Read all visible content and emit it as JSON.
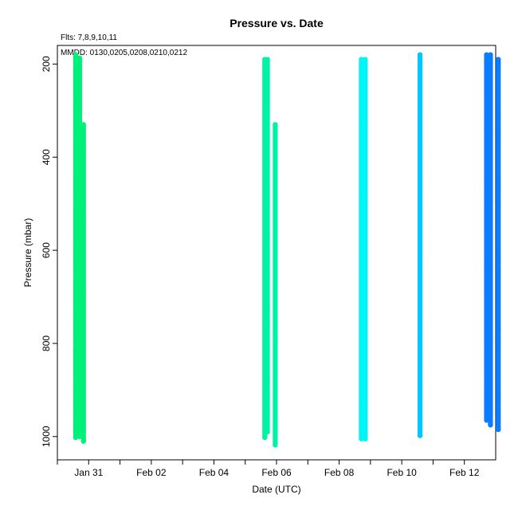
{
  "chart_data": {
    "type": "scatter",
    "title": "Pressure  vs. Date",
    "annotations": [
      "Flts: 7,8,9,10,11",
      "MMDD: 0130,0205,0208,0210,0212"
    ],
    "xlabel": "Date (UTC)",
    "ylabel": "Pressure (mbar)",
    "x_ticks": [
      "Jan 31",
      "Feb 02",
      "Feb 04",
      "Feb 06",
      "Feb 08",
      "Feb 10",
      "Feb 12"
    ],
    "x_tick_dates": [
      "2025-01-31",
      "2025-02-02",
      "2025-02-04",
      "2025-02-06",
      "2025-02-08",
      "2025-02-10",
      "2025-02-12"
    ],
    "xlim": [
      "2025-01-30",
      "2025-02-13"
    ],
    "y_ticks": [
      200,
      400,
      600,
      800,
      1000
    ],
    "ylim": [
      1050,
      160
    ],
    "y_inverted": true,
    "grid": false,
    "series": [
      {
        "color": "#00f07a",
        "strips": [
          {
            "x": "2025-01-30T14:00",
            "p_min": 180,
            "p_max": 1002
          },
          {
            "x": "2025-01-30T17:00",
            "p_min": 187,
            "p_max": 1000
          },
          {
            "x": "2025-01-30T20:00",
            "p_min": 330,
            "p_max": 1010
          }
        ]
      },
      {
        "color": "#00f2a5",
        "strips": [
          {
            "x": "2025-02-05T15:00",
            "p_min": 190,
            "p_max": 1002
          },
          {
            "x": "2025-02-05T17:00",
            "p_min": 190,
            "p_max": 990
          },
          {
            "x": "2025-02-05T23:00",
            "p_min": 330,
            "p_max": 1018
          }
        ]
      },
      {
        "color": "#00f5f5",
        "strips": [
          {
            "x": "2025-02-08T17:00",
            "p_min": 190,
            "p_max": 1005
          },
          {
            "x": "2025-02-08T20:00",
            "p_min": 190,
            "p_max": 1005
          }
        ]
      },
      {
        "color": "#00c7ff",
        "strips": [
          {
            "x": "2025-02-10T14:00",
            "p_min": 180,
            "p_max": 998
          }
        ]
      },
      {
        "color": "#0a7cff",
        "strips": [
          {
            "x": "2025-02-12T17:00",
            "p_min": 180,
            "p_max": 965
          },
          {
            "x": "2025-02-12T20:00",
            "p_min": 180,
            "p_max": 975
          },
          {
            "x": "2025-02-13T02:00",
            "p_min": 190,
            "p_max": 985
          }
        ]
      }
    ]
  }
}
